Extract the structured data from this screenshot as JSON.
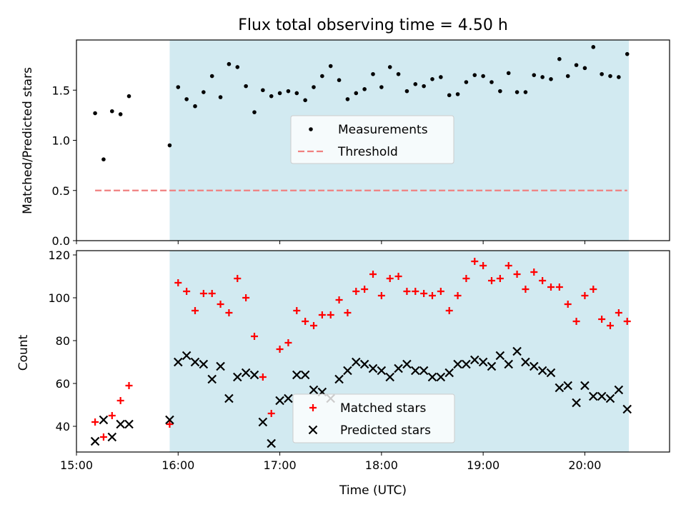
{
  "figure": {
    "title": "Flux total observing time = 4.50 h",
    "xlabel": "Time (UTC)",
    "colors": {
      "shade": "#add8e6",
      "matched": "#ff0000",
      "predicted": "#000000",
      "threshold": "#f08080",
      "measurement": "#000000"
    }
  },
  "chart_data": [
    {
      "type": "scatter",
      "ylabel": "Matched/Predicted stars",
      "xlim": [
        "15:00",
        "20:50"
      ],
      "ylim": [
        0,
        2.0
      ],
      "yticks": [
        "0.0",
        "0.5",
        "1.0",
        "1.5"
      ],
      "grid": false,
      "legend_placement": "center",
      "shaded_region": {
        "x": [
          "15:55",
          "20:26"
        ]
      },
      "series": [
        {
          "name": "Measurements",
          "marker": "dot",
          "x": [
            "15:11",
            "15:16",
            "15:21",
            "15:26",
            "15:31",
            "15:55",
            "16:00",
            "16:05",
            "16:10",
            "16:15",
            "16:20",
            "16:25",
            "16:30",
            "16:35",
            "16:40",
            "16:45",
            "16:50",
            "16:55",
            "17:00",
            "17:05",
            "17:10",
            "17:15",
            "17:20",
            "17:25",
            "17:30",
            "17:35",
            "17:40",
            "17:45",
            "17:50",
            "17:55",
            "18:00",
            "18:05",
            "18:10",
            "18:15",
            "18:20",
            "18:25",
            "18:30",
            "18:35",
            "18:40",
            "18:45",
            "18:50",
            "18:55",
            "19:00",
            "19:05",
            "19:10",
            "19:15",
            "19:20",
            "19:25",
            "19:30",
            "19:35",
            "19:40",
            "19:45",
            "19:50",
            "19:55",
            "20:00",
            "20:05",
            "20:10",
            "20:15",
            "20:20",
            "20:25"
          ],
          "y": [
            1.27,
            0.81,
            1.29,
            1.26,
            1.44,
            0.95,
            1.53,
            1.41,
            1.34,
            1.48,
            1.64,
            1.43,
            1.76,
            1.73,
            1.54,
            1.28,
            1.5,
            1.44,
            1.47,
            1.49,
            1.47,
            1.4,
            1.53,
            1.64,
            1.74,
            1.6,
            1.41,
            1.47,
            1.51,
            1.66,
            1.53,
            1.73,
            1.66,
            1.49,
            1.56,
            1.54,
            1.61,
            1.63,
            1.45,
            1.46,
            1.58,
            1.65,
            1.64,
            1.58,
            1.49,
            1.67,
            1.48,
            1.48,
            1.65,
            1.63,
            1.61,
            1.81,
            1.64,
            1.75,
            1.72,
            1.93,
            1.66,
            1.64,
            1.63,
            1.86
          ]
        },
        {
          "name": "Threshold",
          "style": "dashed",
          "x": [
            "15:11",
            "20:25"
          ],
          "y": [
            0.5,
            0.5
          ]
        }
      ]
    },
    {
      "type": "scatter",
      "ylabel": "Count",
      "xlim": [
        "15:00",
        "20:50"
      ],
      "ylim": [
        28,
        122
      ],
      "yticks": [
        "40",
        "60",
        "80",
        "100",
        "120"
      ],
      "xticks": [
        "15:00",
        "16:00",
        "17:00",
        "18:00",
        "19:00",
        "20:00"
      ],
      "grid": false,
      "legend_placement": "lower center",
      "shaded_region": {
        "x": [
          "15:55",
          "20:26"
        ]
      },
      "series": [
        {
          "name": "Matched stars",
          "marker": "plus",
          "x": [
            "15:11",
            "15:16",
            "15:21",
            "15:26",
            "15:31",
            "15:55",
            "16:00",
            "16:05",
            "16:10",
            "16:15",
            "16:20",
            "16:25",
            "16:30",
            "16:35",
            "16:40",
            "16:45",
            "16:50",
            "16:55",
            "17:00",
            "17:05",
            "17:10",
            "17:15",
            "17:20",
            "17:25",
            "17:30",
            "17:35",
            "17:40",
            "17:45",
            "17:50",
            "17:55",
            "18:00",
            "18:05",
            "18:10",
            "18:15",
            "18:20",
            "18:25",
            "18:30",
            "18:35",
            "18:40",
            "18:45",
            "18:50",
            "18:55",
            "19:00",
            "19:05",
            "19:10",
            "19:15",
            "19:20",
            "19:25",
            "19:30",
            "19:35",
            "19:40",
            "19:45",
            "19:50",
            "19:55",
            "20:00",
            "20:05",
            "20:10",
            "20:15",
            "20:20",
            "20:25"
          ],
          "y": [
            42,
            35,
            45,
            52,
            59,
            41,
            107,
            103,
            94,
            102,
            102,
            97,
            93,
            109,
            100,
            82,
            63,
            46,
            76,
            79,
            94,
            89,
            87,
            92,
            92,
            99,
            93,
            103,
            104,
            111,
            101,
            109,
            110,
            103,
            103,
            102,
            101,
            103,
            94,
            101,
            109,
            117,
            115,
            108,
            109,
            115,
            111,
            104,
            112,
            108,
            105,
            105,
            97,
            89,
            101,
            104,
            90,
            87,
            93,
            89
          ]
        },
        {
          "name": "Predicted stars",
          "marker": "x",
          "x": [
            "15:11",
            "15:16",
            "15:21",
            "15:26",
            "15:31",
            "15:55",
            "16:00",
            "16:05",
            "16:10",
            "16:15",
            "16:20",
            "16:25",
            "16:30",
            "16:35",
            "16:40",
            "16:45",
            "16:50",
            "16:55",
            "17:00",
            "17:05",
            "17:10",
            "17:15",
            "17:20",
            "17:25",
            "17:30",
            "17:35",
            "17:40",
            "17:45",
            "17:50",
            "17:55",
            "18:00",
            "18:05",
            "18:10",
            "18:15",
            "18:20",
            "18:25",
            "18:30",
            "18:35",
            "18:40",
            "18:45",
            "18:50",
            "18:55",
            "19:00",
            "19:05",
            "19:10",
            "19:15",
            "19:20",
            "19:25",
            "19:30",
            "19:35",
            "19:40",
            "19:45",
            "19:50",
            "19:55",
            "20:00",
            "20:05",
            "20:10",
            "20:15",
            "20:20",
            "20:25"
          ],
          "y": [
            33,
            43,
            35,
            41,
            41,
            43,
            70,
            73,
            70,
            69,
            62,
            68,
            53,
            63,
            65,
            64,
            42,
            32,
            52,
            53,
            64,
            64,
            57,
            56,
            53,
            62,
            66,
            70,
            69,
            67,
            66,
            63,
            67,
            69,
            66,
            66,
            63,
            63,
            65,
            69,
            69,
            71,
            70,
            68,
            73,
            69,
            75,
            70,
            68,
            66,
            65,
            58,
            59,
            51,
            59,
            54,
            54,
            53,
            57,
            48
          ]
        }
      ]
    }
  ]
}
